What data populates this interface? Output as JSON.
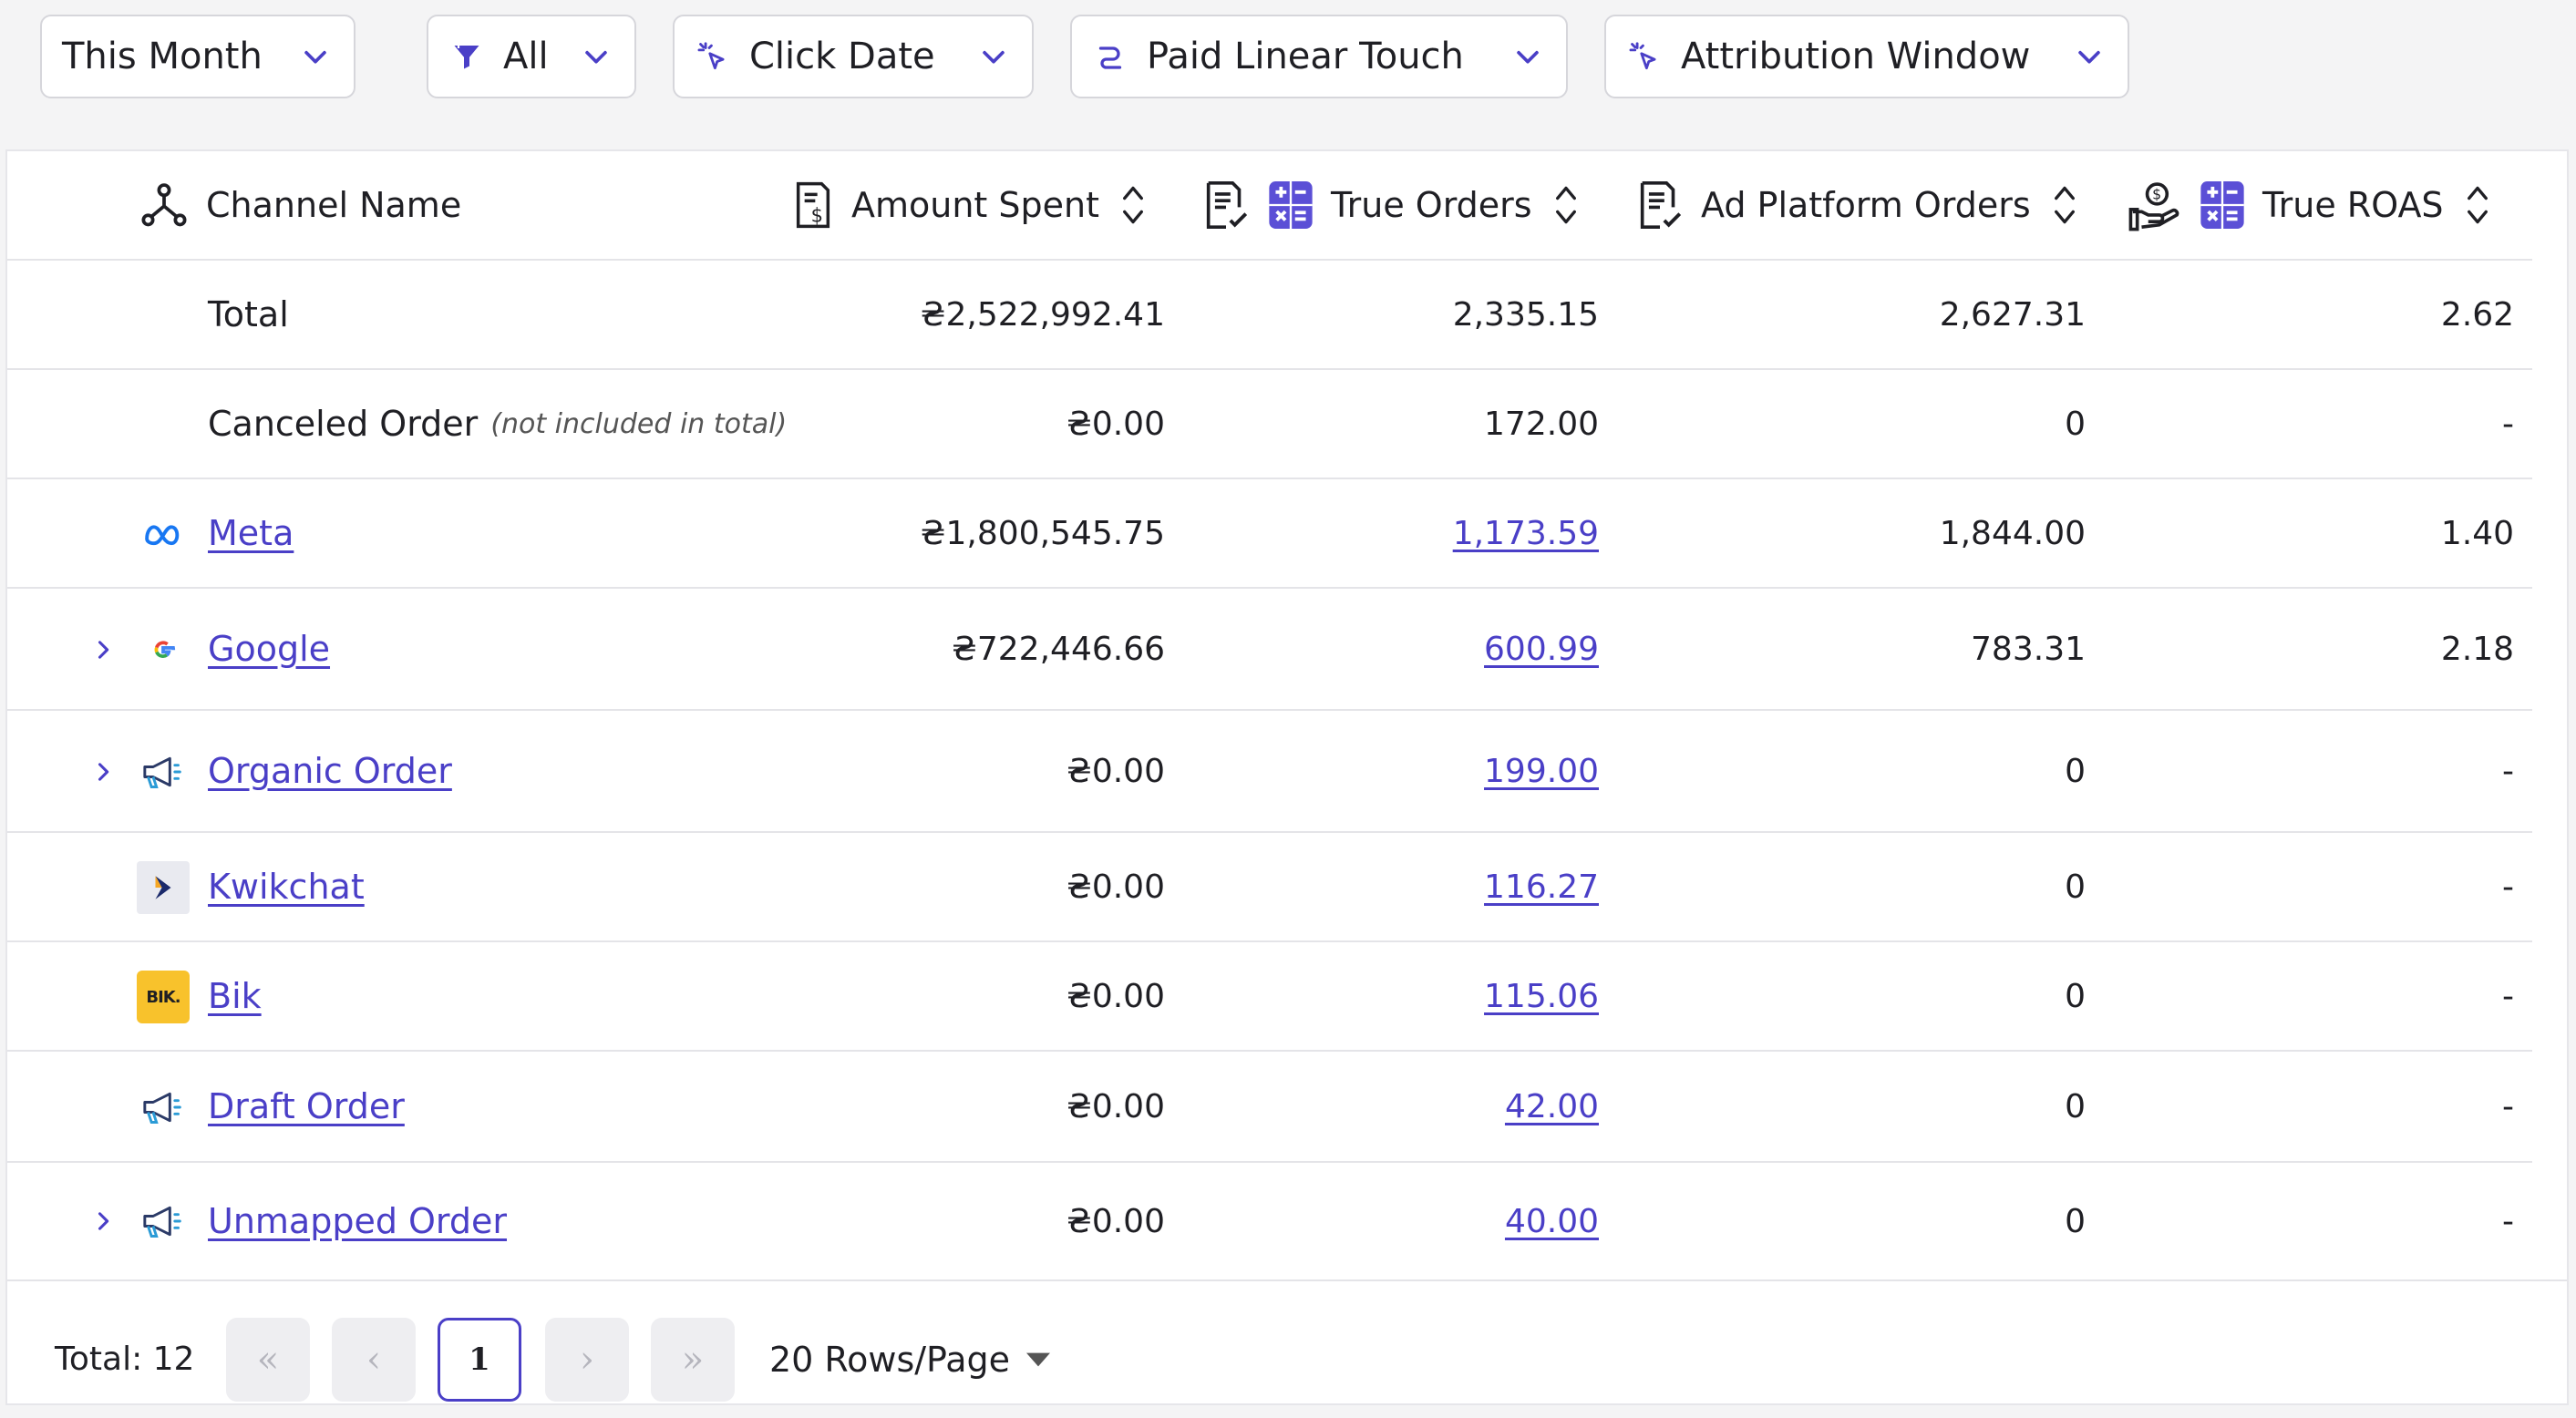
{
  "filters": {
    "period": "This Month",
    "scope": "All",
    "date_type": "Click Date",
    "model": "Paid Linear Touch",
    "window": "Attribution Window"
  },
  "table": {
    "columns": {
      "channel": "Channel Name",
      "amount": "Amount Spent",
      "true_orders": "True Orders",
      "ad_orders": "Ad Platform Orders",
      "roas": "True ROAS"
    },
    "total_row": {
      "name": "Total",
      "amount": "₴2,522,992.41",
      "true_orders": "2,335.15",
      "ad_orders": "2,627.31",
      "roas": "2.62"
    },
    "canceled_row": {
      "name": "Canceled Order",
      "note": "(not included in total)",
      "amount": "₴0.00",
      "true_orders": "172.00",
      "ad_orders": "0",
      "roas": "-"
    },
    "rows": [
      {
        "name": "Meta",
        "icon": "meta-icon",
        "expandable": false,
        "amount": "₴1,800,545.75",
        "true_orders": "1,173.59",
        "ad_orders": "1,844.00",
        "roas": "1.40"
      },
      {
        "name": "Google",
        "icon": "google-icon",
        "expandable": true,
        "amount": "₴722,446.66",
        "true_orders": "600.99",
        "ad_orders": "783.31",
        "roas": "2.18"
      },
      {
        "name": "Organic Order",
        "icon": "megaphone-icon",
        "expandable": true,
        "amount": "₴0.00",
        "true_orders": "199.00",
        "ad_orders": "0",
        "roas": "-"
      },
      {
        "name": "Kwikchat",
        "icon": "kwikchat-icon",
        "expandable": false,
        "amount": "₴0.00",
        "true_orders": "116.27",
        "ad_orders": "0",
        "roas": "-"
      },
      {
        "name": "Bik",
        "icon": "bik-logo",
        "icon_text": "BIK.",
        "expandable": false,
        "amount": "₴0.00",
        "true_orders": "115.06",
        "ad_orders": "0",
        "roas": "-"
      },
      {
        "name": "Draft Order",
        "icon": "megaphone-icon",
        "expandable": false,
        "amount": "₴0.00",
        "true_orders": "42.00",
        "ad_orders": "0",
        "roas": "-"
      },
      {
        "name": "Unmapped Order",
        "icon": "megaphone-icon",
        "expandable": true,
        "amount": "₴0.00",
        "true_orders": "40.00",
        "ad_orders": "0",
        "roas": "-"
      }
    ]
  },
  "pagination": {
    "total": "Total: 12",
    "first": "«",
    "prev": "‹",
    "page": "1",
    "next": "›",
    "last": "»",
    "rows_per_page": "20 Rows/Page"
  },
  "colors": {
    "accent": "#4a3fc7",
    "border": "#e4e4e8",
    "background": "#f4f4f5"
  }
}
